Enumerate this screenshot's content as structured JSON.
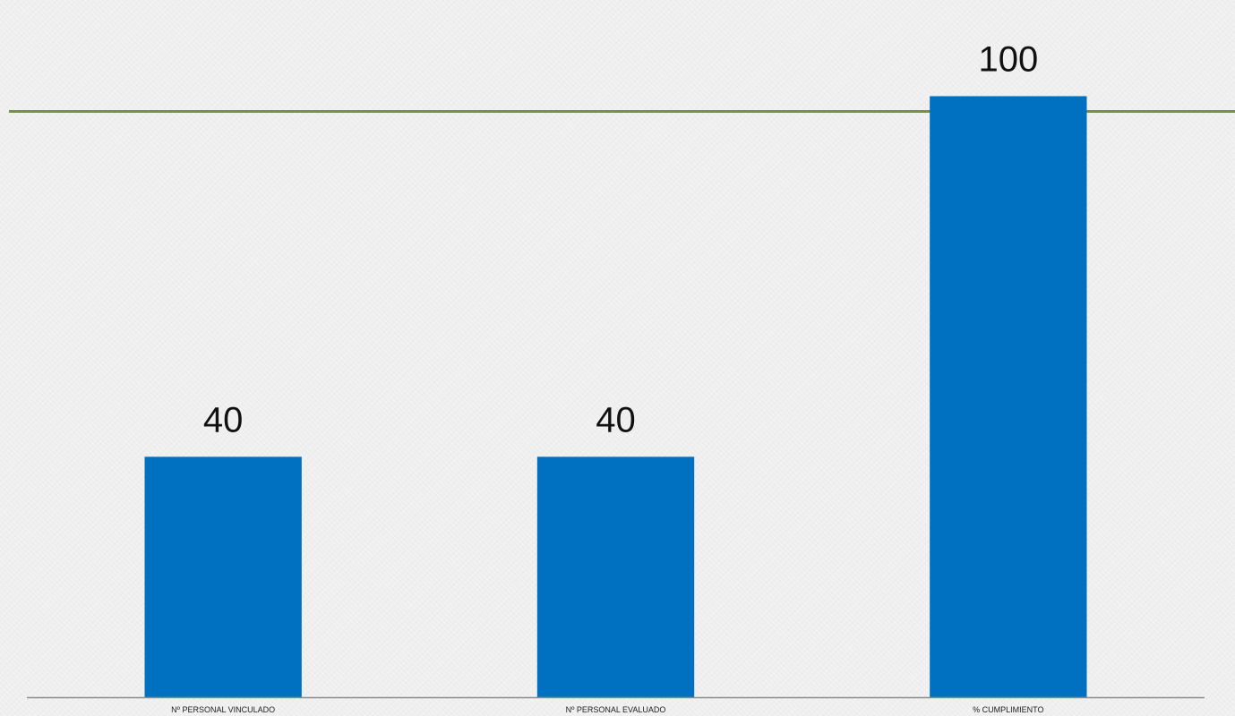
{
  "colors": {
    "bar": "#0070c0",
    "accent_line": "#76923c",
    "axis": "#8c8c8c"
  },
  "chart_data": {
    "type": "bar",
    "categories": [
      "Nº PERSONAL VINCULADO",
      "Nº PERSONAL EVALUADO",
      "% CUMPLIMIENTO"
    ],
    "values": [
      40,
      40,
      100
    ],
    "data_labels": [
      "40",
      "40",
      "100"
    ],
    "ylim": [
      0,
      116
    ],
    "grid": false,
    "legend": "none"
  }
}
